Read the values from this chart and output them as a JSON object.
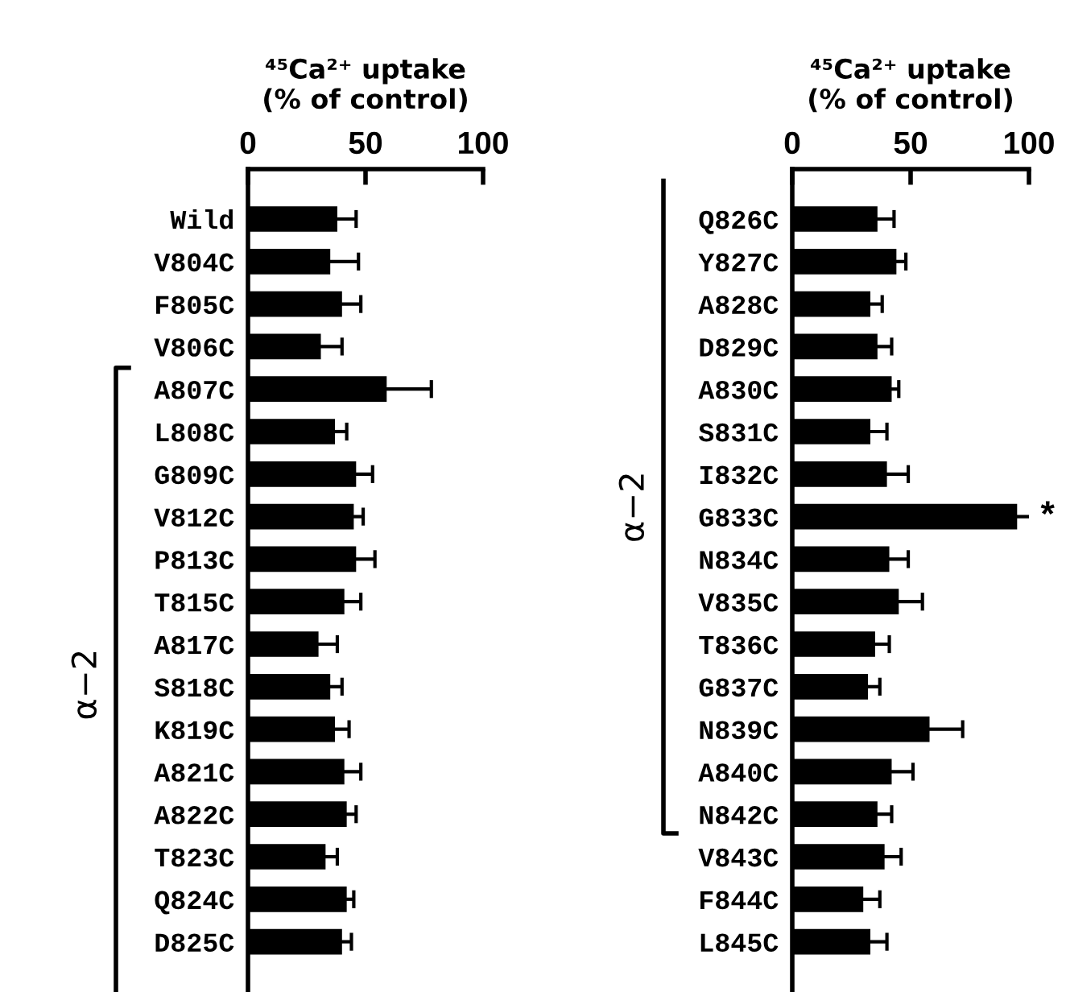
{
  "chart_data": [
    {
      "type": "bar",
      "orientation": "horizontal",
      "xlabel": "⁴⁵Ca²⁺ uptake\n(% of control)",
      "xlim": [
        0,
        100
      ],
      "xticks": [
        0,
        50,
        100
      ],
      "color": "#000000",
      "grid": false,
      "legend": false,
      "annotations": [
        "α−2"
      ],
      "categories": [
        "Wild",
        "V804C",
        "F805C",
        "V806C",
        "A807C",
        "L808C",
        "G809C",
        "V812C",
        "P813C",
        "T815C",
        "A817C",
        "S818C",
        "K819C",
        "A821C",
        "A822C",
        "T823C",
        "Q824C",
        "D825C"
      ],
      "values": [
        38,
        35,
        40,
        31,
        59,
        37,
        46,
        45,
        46,
        41,
        30,
        35,
        37,
        41,
        42,
        33,
        42,
        40
      ],
      "errors": [
        8,
        12,
        8,
        9,
        19,
        5,
        7,
        4,
        8,
        7,
        8,
        5,
        6,
        7,
        4,
        5,
        3,
        4
      ]
    },
    {
      "type": "bar",
      "orientation": "horizontal",
      "xlabel": "⁴⁵Ca²⁺ uptake\n(% of control)",
      "xlim": [
        0,
        100
      ],
      "xticks": [
        0,
        50,
        100
      ],
      "color": "#000000",
      "grid": false,
      "legend": false,
      "annotations": [
        "α−2",
        {
          "text": "*",
          "x": 104,
          "y": "G833C"
        }
      ],
      "categories": [
        "Q826C",
        "Y827C",
        "A828C",
        "D829C",
        "A830C",
        "S831C",
        "I832C",
        "G833C",
        "N834C",
        "V835C",
        "T836C",
        "G837C",
        "N839C",
        "A840C",
        "N842C",
        "V843C",
        "F844C",
        "L845C"
      ],
      "values": [
        36,
        44,
        33,
        36,
        42,
        33,
        40,
        95,
        41,
        45,
        35,
        32,
        58,
        42,
        36,
        39,
        30,
        33
      ],
      "errors": [
        7,
        4,
        5,
        6,
        3,
        7,
        9,
        8,
        8,
        10,
        6,
        5,
        14,
        9,
        6,
        7,
        7,
        7
      ]
    }
  ]
}
